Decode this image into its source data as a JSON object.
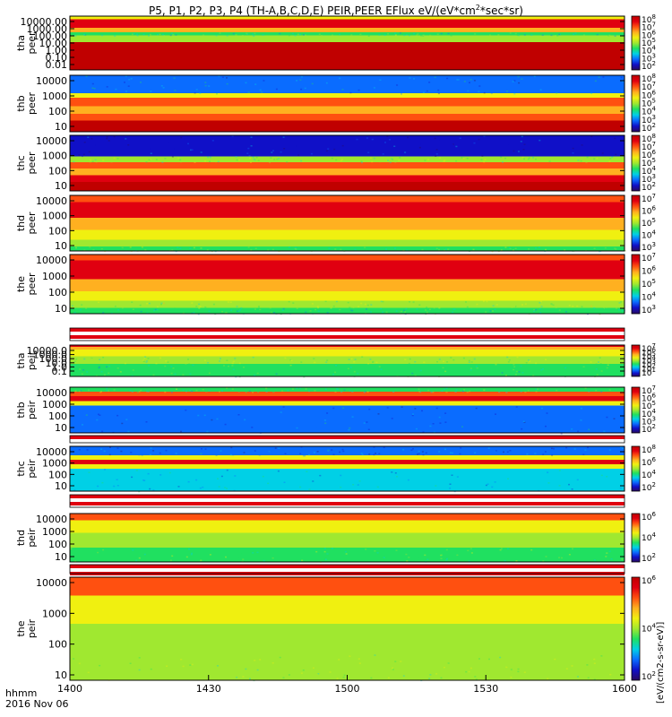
{
  "chart_data": {
    "type": "heatmap",
    "title": "P5, P1, P2, P3, P4 (TH-A,B,C,D,E) PEIR,PEER EFlux eV/(eV*cm",
    "title_superscript": "2",
    "title_suffix": "*sec*sr)",
    "x_axis": {
      "ticks": [
        "1400",
        "1430",
        "1500",
        "1530",
        "1600"
      ],
      "label_line1": "hhmm",
      "label_line2": "2016 Nov 06"
    },
    "colorbar_label": "[eV/(cm2-s-sr-eV)]",
    "colormap": [
      "#2a0a60",
      "#1010c8",
      "#0a6cff",
      "#00d0e6",
      "#20e060",
      "#a0e830",
      "#f0f010",
      "#ffb020",
      "#ff5010",
      "#e00010",
      "#c00000"
    ],
    "panels": [
      {
        "id": "tha_peer",
        "label_line1": "tha",
        "label_line2": "peer",
        "y_ticks": [
          "10000.00",
          "1000.00",
          "100.00",
          "10.00",
          "1.00",
          "0.10",
          "0.01"
        ],
        "colorbar_ticks": [
          "10^8",
          "10^7",
          "10^6",
          "10^5",
          "10^4",
          "10^3",
          "10^2"
        ],
        "bands": [
          {
            "from": 0.0,
            "to": 0.06,
            "level": 0.55
          },
          {
            "from": 0.06,
            "to": 0.22,
            "level": 0.86
          },
          {
            "from": 0.22,
            "to": 0.3,
            "level": 0.66
          },
          {
            "from": 0.3,
            "to": 0.36,
            "level": 0.38
          },
          {
            "from": 0.36,
            "to": 0.48,
            "level": 0.5
          },
          {
            "from": 0.48,
            "to": 0.62,
            "level": 0.95
          },
          {
            "from": 0.62,
            "to": 0.78,
            "level": 1.0
          },
          {
            "from": 0.78,
            "to": 1.0,
            "level": 0.96
          }
        ]
      },
      {
        "id": "thb_peer",
        "label_line1": "thb",
        "label_line2": "peer",
        "y_ticks": [
          "10000",
          "1000",
          "100",
          "10"
        ],
        "colorbar_ticks": [
          "10^8",
          "10^7",
          "10^6",
          "10^5",
          "10^4",
          "10^3",
          "10^2"
        ],
        "bands": [
          {
            "from": 0.0,
            "to": 0.32,
            "level": 0.22
          },
          {
            "from": 0.32,
            "to": 0.4,
            "level": 0.55
          },
          {
            "from": 0.4,
            "to": 0.55,
            "level": 0.8
          },
          {
            "from": 0.55,
            "to": 0.68,
            "level": 0.66
          },
          {
            "from": 0.68,
            "to": 0.8,
            "level": 0.84
          },
          {
            "from": 0.8,
            "to": 1.0,
            "level": 0.96
          }
        ]
      },
      {
        "id": "thc_peer",
        "label_line1": "thc",
        "label_line2": "peer",
        "y_ticks": [
          "10000",
          "1000",
          "100",
          "10"
        ],
        "colorbar_ticks": [
          "10^8",
          "10^7",
          "10^6",
          "10^5",
          "10^4",
          "10^3",
          "10^2"
        ],
        "bands": [
          {
            "from": 0.0,
            "to": 0.38,
            "level": 0.14
          },
          {
            "from": 0.38,
            "to": 0.48,
            "level": 0.45
          },
          {
            "from": 0.48,
            "to": 0.6,
            "level": 0.8
          },
          {
            "from": 0.6,
            "to": 0.72,
            "level": 0.66
          },
          {
            "from": 0.72,
            "to": 0.84,
            "level": 0.86
          },
          {
            "from": 0.84,
            "to": 1.0,
            "level": 0.97
          }
        ]
      },
      {
        "id": "thd_peer",
        "label_line1": "thd",
        "label_line2": "peer",
        "y_ticks": [
          "10000",
          "1000",
          "100",
          "10"
        ],
        "colorbar_ticks": [
          "10^7",
          "10^6",
          "10^5",
          "10^4",
          "10^3"
        ],
        "bands": [
          {
            "from": 0.0,
            "to": 0.12,
            "level": 0.8
          },
          {
            "from": 0.12,
            "to": 0.4,
            "level": 0.92
          },
          {
            "from": 0.4,
            "to": 0.62,
            "level": 0.74
          },
          {
            "from": 0.62,
            "to": 0.8,
            "level": 0.62
          },
          {
            "from": 0.8,
            "to": 0.92,
            "level": 0.52
          },
          {
            "from": 0.92,
            "to": 1.0,
            "level": 0.44
          }
        ]
      },
      {
        "id": "the_peer",
        "label_line1": "the",
        "label_line2": "peer",
        "y_ticks": [
          "10000",
          "1000",
          "100",
          "10"
        ],
        "colorbar_ticks": [
          "10^7",
          "10^6",
          "10^5",
          "10^4",
          "10^3"
        ],
        "bands": [
          {
            "from": 0.0,
            "to": 0.1,
            "level": 0.78
          },
          {
            "from": 0.1,
            "to": 0.42,
            "level": 0.93
          },
          {
            "from": 0.42,
            "to": 0.62,
            "level": 0.74
          },
          {
            "from": 0.62,
            "to": 0.78,
            "level": 0.6
          },
          {
            "from": 0.78,
            "to": 0.9,
            "level": 0.48
          },
          {
            "from": 0.9,
            "to": 1.0,
            "level": 0.36
          }
        ]
      },
      {
        "id": "tha_peir",
        "label_line1": "tha",
        "label_line2": "peir",
        "y_ticks": [
          "10000.0",
          "1000.0",
          "100.0",
          "10.0",
          "1.0",
          "0.1"
        ],
        "colorbar_ticks": [
          "10^7",
          "10^6",
          "10^5",
          "10^4",
          "10^3",
          "10^2",
          "10^1"
        ],
        "bands": [
          {
            "from": 0.0,
            "to": 0.05,
            "level": 0.88
          },
          {
            "from": 0.05,
            "to": 0.14,
            "level": 0.74
          },
          {
            "from": 0.14,
            "to": 0.35,
            "level": 0.56
          },
          {
            "from": 0.35,
            "to": 0.6,
            "level": 0.46
          },
          {
            "from": 0.6,
            "to": 1.0,
            "level": 0.4
          }
        ]
      },
      {
        "id": "thb_peir",
        "label_line1": "thb",
        "label_line2": "peir",
        "y_ticks": [
          "10000",
          "1000",
          "100",
          "10"
        ],
        "colorbar_ticks": [
          "10^7",
          "10^6",
          "10^5",
          "10^4",
          "10^3",
          "10^2"
        ],
        "bands": [
          {
            "from": 0.0,
            "to": 0.1,
            "level": 0.4
          },
          {
            "from": 0.1,
            "to": 0.2,
            "level": 0.78
          },
          {
            "from": 0.2,
            "to": 0.3,
            "level": 0.92
          },
          {
            "from": 0.3,
            "to": 0.4,
            "level": 0.62
          },
          {
            "from": 0.4,
            "to": 1.0,
            "level": 0.2
          }
        ]
      },
      {
        "id": "thc_peir",
        "label_line1": "thc",
        "label_line2": "peir",
        "y_ticks": [
          "10000",
          "1000",
          "100",
          "10"
        ],
        "colorbar_ticks": [
          "10^8",
          "10^6",
          "10^4",
          "10^2"
        ],
        "bands": [
          {
            "from": 0.0,
            "to": 0.2,
            "level": 0.18
          },
          {
            "from": 0.2,
            "to": 0.3,
            "level": 0.6
          },
          {
            "from": 0.3,
            "to": 0.4,
            "level": 0.92
          },
          {
            "from": 0.4,
            "to": 0.5,
            "level": 0.55
          },
          {
            "from": 0.5,
            "to": 1.0,
            "level": 0.28
          }
        ]
      },
      {
        "id": "thd_peir",
        "label_line1": "thd",
        "label_line2": "peir",
        "y_ticks": [
          "10000",
          "1000",
          "100",
          "10"
        ],
        "colorbar_ticks": [
          "10^6",
          "10^4",
          "10^2"
        ],
        "bands": [
          {
            "from": 0.0,
            "to": 0.14,
            "level": 0.8
          },
          {
            "from": 0.14,
            "to": 0.4,
            "level": 0.62
          },
          {
            "from": 0.4,
            "to": 0.7,
            "level": 0.52
          },
          {
            "from": 0.7,
            "to": 1.0,
            "level": 0.44
          }
        ]
      },
      {
        "id": "the_peir",
        "label_line1": "the",
        "label_line2": "peir",
        "y_ticks": [
          "10000",
          "1000",
          "100",
          "10"
        ],
        "colorbar_ticks": [
          "10^6",
          "10^4",
          "10^2"
        ],
        "bands": [
          {
            "from": 0.0,
            "to": 0.18,
            "level": 0.78
          },
          {
            "from": 0.18,
            "to": 0.45,
            "level": 0.64
          },
          {
            "from": 0.45,
            "to": 0.75,
            "level": 0.54
          },
          {
            "from": 0.75,
            "to": 1.0,
            "level": 0.46
          }
        ]
      }
    ]
  }
}
